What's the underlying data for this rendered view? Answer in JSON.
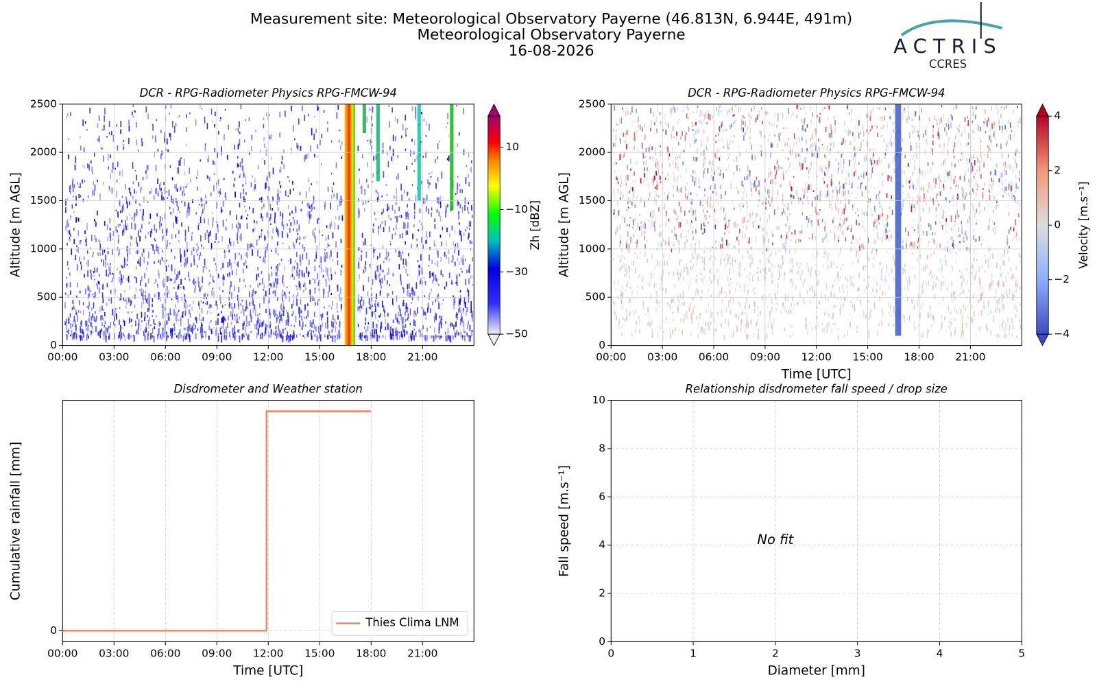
{
  "header": {
    "title_lines": [
      "Measurement site: Meteorological Observatory Payerne (46.813N, 6.944E, 491m)",
      "Meteorological Observatory Payerne",
      "16-08-2026"
    ],
    "logo": {
      "name": "ACTRIS",
      "subtitle": "CCRES"
    }
  },
  "chart_data": [
    {
      "type": "heatmap",
      "title": "DCR - RPG-Radiometer Physics RPG-FMCW-94",
      "ylabel": "Altitude [m AGL]",
      "xlim": [
        0,
        24
      ],
      "xticks": [
        {
          "value": 0,
          "label": "00:00"
        },
        {
          "value": 3,
          "label": "03:00"
        },
        {
          "value": 6,
          "label": "06:00"
        },
        {
          "value": 9,
          "label": "09:00"
        },
        {
          "value": 12,
          "label": "12:00"
        },
        {
          "value": 15,
          "label": "15:00"
        },
        {
          "value": 18,
          "label": "18:00"
        },
        {
          "value": 21,
          "label": "21:00"
        }
      ],
      "ylim": [
        0,
        2500
      ],
      "yticks": [
        0,
        500,
        1000,
        1500,
        2000,
        2500
      ],
      "grid": true,
      "colorbar": {
        "label": "Zh [dBZ]",
        "clim": [
          -50,
          20
        ],
        "ticks": [
          {
            "value": -50,
            "label": "−50"
          },
          {
            "value": -30,
            "label": "−30"
          },
          {
            "value": -10,
            "label": "−10"
          },
          10
        ],
        "colormap": "rainbow",
        "extend": "both"
      }
    },
    {
      "type": "heatmap",
      "title": "DCR - RPG-Radiometer Physics RPG-FMCW-94",
      "xlabel": "Time [UTC]",
      "ylabel": "Altitude [m AGL]",
      "xlim": [
        0,
        24
      ],
      "xticks": [
        {
          "value": 0,
          "label": "00:00"
        },
        {
          "value": 3,
          "label": "03:00"
        },
        {
          "value": 6,
          "label": "06:00"
        },
        {
          "value": 9,
          "label": "09:00"
        },
        {
          "value": 12,
          "label": "12:00"
        },
        {
          "value": 15,
          "label": "15:00"
        },
        {
          "value": 18,
          "label": "18:00"
        },
        {
          "value": 21,
          "label": "21:00"
        }
      ],
      "ylim": [
        0,
        2500
      ],
      "yticks": [
        0,
        500,
        1000,
        1500,
        2000,
        2500
      ],
      "grid": true,
      "colorbar": {
        "label": "Velocity [m.s⁻¹]",
        "clim": [
          -4,
          4
        ],
        "ticks": [
          {
            "value": -4,
            "label": "−4"
          },
          {
            "value": -2,
            "label": "−2"
          },
          0,
          2,
          4
        ],
        "colormap": "coolwarm",
        "extend": "both"
      }
    },
    {
      "type": "line",
      "title": "Disdrometer and Weather station",
      "xlabel": "Time [UTC]",
      "ylabel": "Cumulative rainfall [mm]",
      "x": [
        0,
        11.9,
        11.9,
        18
      ],
      "series": [
        {
          "name": "Thies Clima LNM",
          "color": "#f08a5d",
          "values": [
            0,
            0,
            1,
            1
          ]
        }
      ],
      "xlim": [
        0,
        24
      ],
      "xticks": [
        {
          "value": 0,
          "label": "00:00"
        },
        {
          "value": 3,
          "label": "03:00"
        },
        {
          "value": 6,
          "label": "06:00"
        },
        {
          "value": 9,
          "label": "09:00"
        },
        {
          "value": 12,
          "label": "12:00"
        },
        {
          "value": 15,
          "label": "15:00"
        },
        {
          "value": 18,
          "label": "18:00"
        },
        {
          "value": 21,
          "label": "21:00"
        }
      ],
      "ylim": [
        -0.05,
        1.05
      ],
      "yticks": [
        0
      ],
      "grid": true,
      "legend": "lower right"
    },
    {
      "type": "scatter",
      "title": "Relationship disdrometer fall speed / drop size",
      "xlabel": "Diameter [mm]",
      "ylabel": "Fall speed [m.s⁻¹]",
      "series": [],
      "annotation": "No fit",
      "xlim": [
        0,
        5
      ],
      "xticks": [
        0,
        1,
        2,
        3,
        4,
        5
      ],
      "ylim": [
        0,
        10
      ],
      "yticks": [
        0,
        2,
        4,
        6,
        8,
        10
      ],
      "grid": true
    }
  ]
}
